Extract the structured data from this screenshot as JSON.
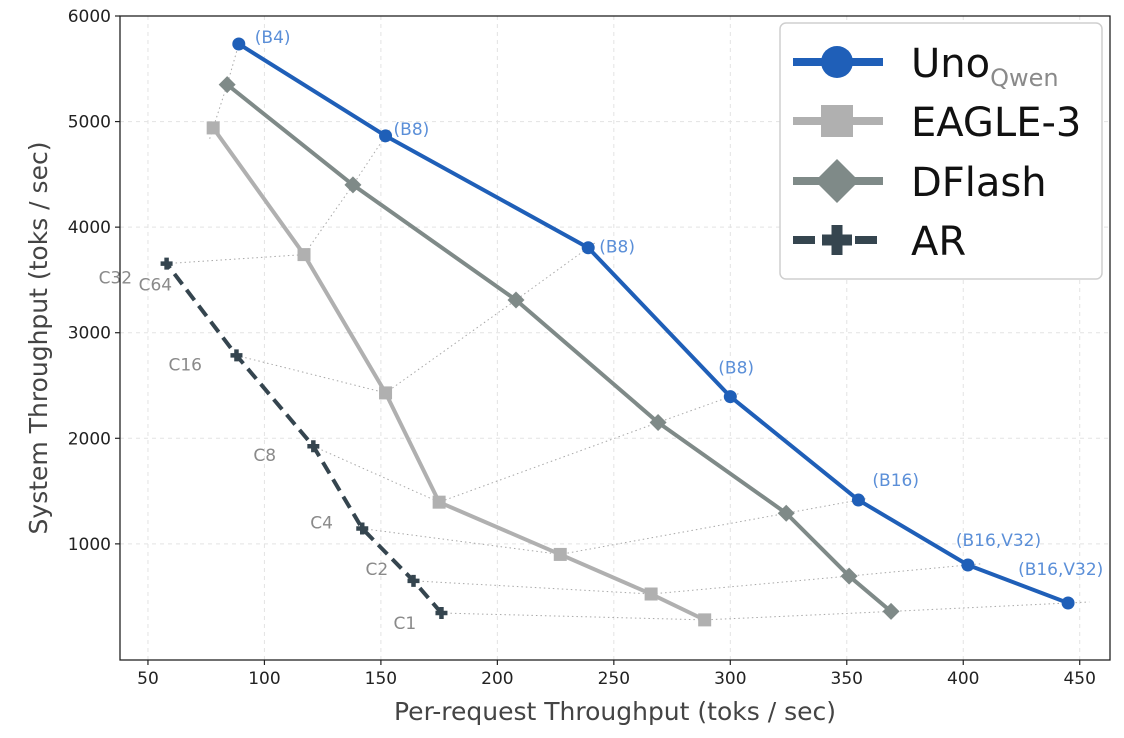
{
  "chart_data": {
    "type": "line",
    "xlabel": "Per-request Throughput (toks / sec)",
    "ylabel": "System Throughput (toks / sec)",
    "xlim": [
      38,
      463
    ],
    "ylim": [
      -100,
      6000
    ],
    "x_ticks": [
      50,
      100,
      150,
      200,
      250,
      300,
      350,
      400,
      450
    ],
    "y_ticks": [
      1000,
      2000,
      3000,
      4000,
      5000,
      6000
    ],
    "grid": true,
    "legend_position": "top-right",
    "concurrency_levels": [
      "C1",
      "C2",
      "C4",
      "C8",
      "C16",
      "C32",
      "C64"
    ],
    "series": [
      {
        "name": "Uno",
        "name_subscript": "Qwen",
        "color": "#1f5fb8",
        "marker": "circle",
        "linestyle": "solid",
        "x": [
          445,
          402,
          355,
          300,
          239,
          152,
          89
        ],
        "y": [
          440,
          800,
          1415,
          2395,
          3805,
          4865,
          5735
        ],
        "point_labels": [
          "(B16,V32)",
          "(B16,V32)",
          "(B16)",
          "(B8)",
          "(B8)",
          "(B8)",
          "(B4)"
        ]
      },
      {
        "name": "EAGLE-3",
        "color": "#b0b0b0",
        "marker": "square",
        "linestyle": "solid",
        "x": [
          289,
          266,
          227,
          175,
          152,
          117,
          78
        ],
        "y": [
          280,
          525,
          900,
          1395,
          2430,
          3740,
          4940
        ]
      },
      {
        "name": "DFlash",
        "color": "#7f8a88",
        "marker": "diamond",
        "linestyle": "solid",
        "x": [
          369,
          351,
          324,
          269,
          208,
          138,
          84
        ],
        "y": [
          360,
          695,
          1290,
          2150,
          3310,
          4400,
          5350
        ]
      },
      {
        "name": "AR",
        "color": "#35454f",
        "marker": "plus",
        "linestyle": "dashed",
        "x": [
          176,
          164,
          142,
          121,
          88,
          58
        ],
        "y": [
          345,
          650,
          1145,
          1925,
          2785,
          3655
        ]
      }
    ]
  }
}
